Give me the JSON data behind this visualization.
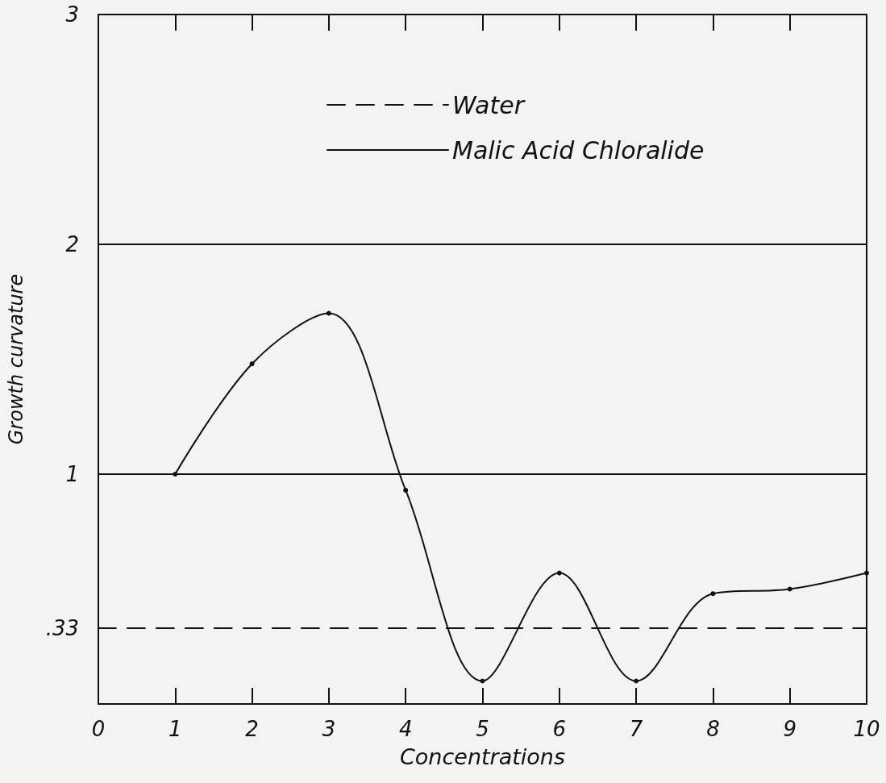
{
  "chart_data": {
    "type": "line",
    "xlabel": "Concentrations",
    "ylabel": "Growth curvature",
    "xlim": [
      0,
      10
    ],
    "xticks": [
      0,
      1,
      2,
      3,
      4,
      5,
      6,
      7,
      8,
      9,
      10
    ],
    "ylim": [
      0,
      3
    ],
    "yticks": [
      {
        "value": 0.33,
        "label": ".33"
      },
      1,
      2,
      3
    ],
    "grid": false,
    "legend": "top",
    "marker": "circle",
    "line_style": "solid",
    "ref_lines": [
      {
        "axis": "y",
        "value": 2,
        "color": "#111111"
      },
      {
        "axis": "y",
        "value": 1,
        "color": "#111111"
      }
    ],
    "series": [
      {
        "name": "Water",
        "color": "#111111",
        "line_style": "dashed",
        "marker": "none",
        "x": [
          0,
          10
        ],
        "values": [
          0.33,
          0.33
        ]
      },
      {
        "name": "Malic Acid Chloralide",
        "color": "#111111",
        "x": [
          1,
          2,
          3,
          4,
          5,
          6,
          7,
          8,
          9,
          10
        ],
        "values": [
          1.0,
          1.48,
          1.7,
          0.93,
          0.1,
          0.57,
          0.1,
          0.48,
          0.5,
          0.57
        ]
      }
    ]
  }
}
